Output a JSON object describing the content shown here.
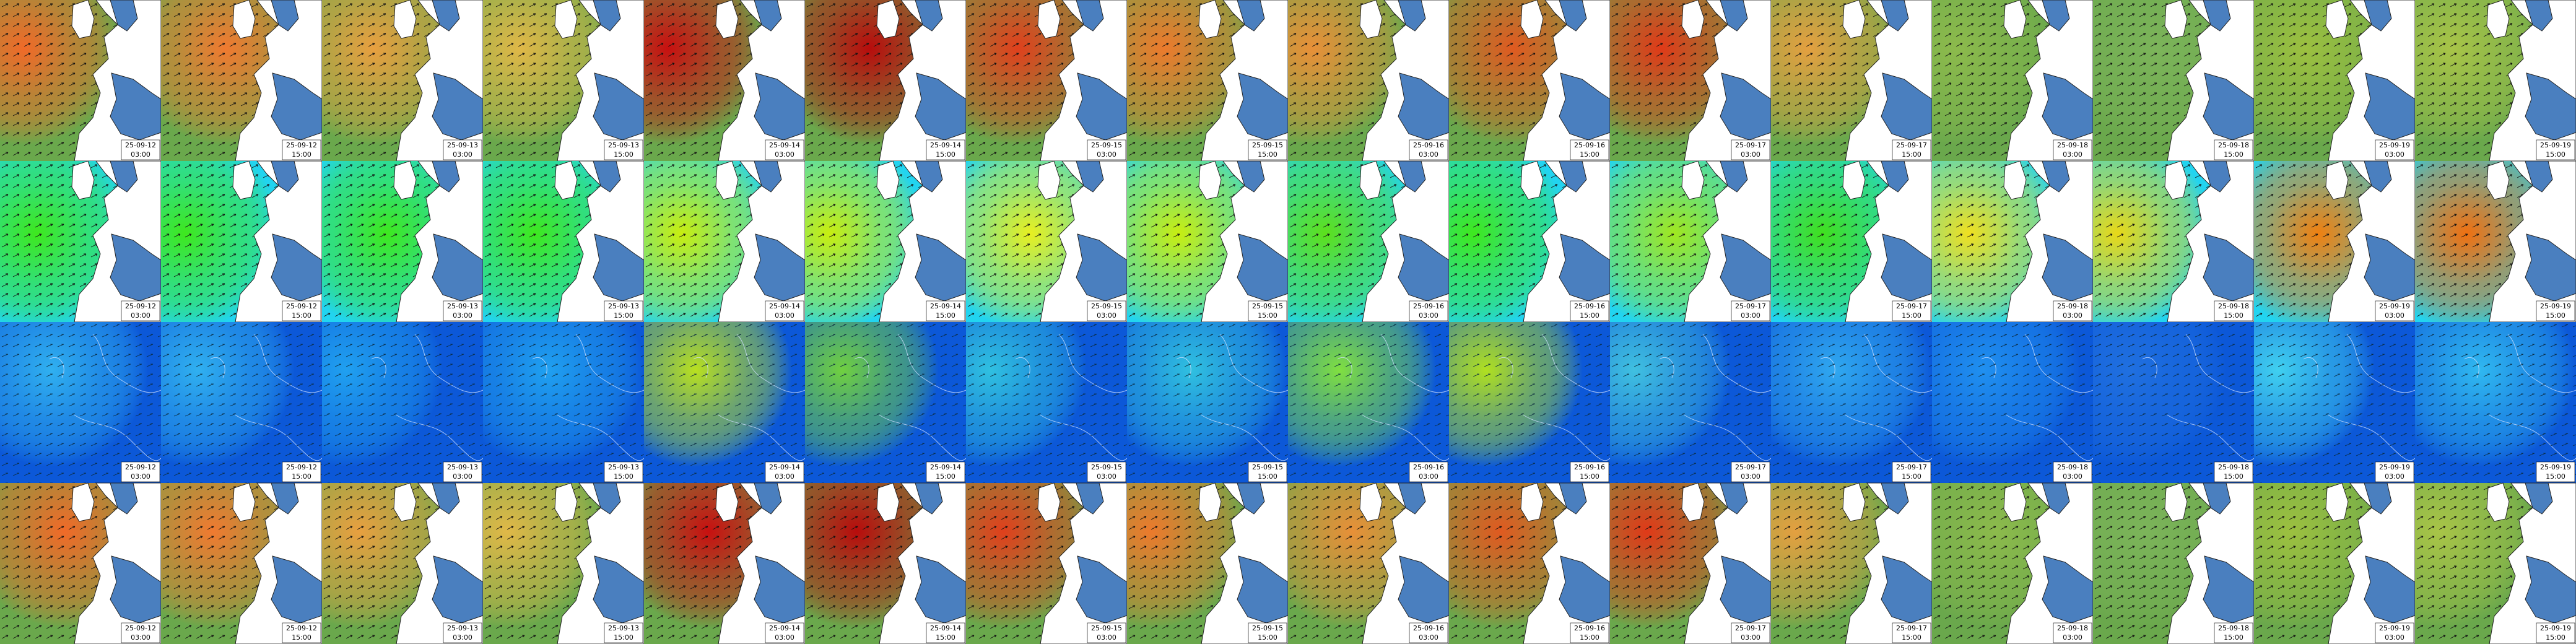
{
  "frames": [
    {
      "date": "25-09-12",
      "time": "03:00"
    },
    {
      "date": "25-09-12",
      "time": "15:00"
    },
    {
      "date": "25-09-13",
      "time": "03:00"
    },
    {
      "date": "25-09-13",
      "time": "15:00"
    },
    {
      "date": "25-09-14",
      "time": "03:00"
    },
    {
      "date": "25-09-14",
      "time": "15:00"
    },
    {
      "date": "25-09-15",
      "time": "03:00"
    },
    {
      "date": "25-09-15",
      "time": "15:00"
    },
    {
      "date": "25-09-16",
      "time": "03:00"
    },
    {
      "date": "25-09-16",
      "time": "15:00"
    },
    {
      "date": "25-09-17",
      "time": "03:00"
    },
    {
      "date": "25-09-17",
      "time": "15:00"
    },
    {
      "date": "25-09-18",
      "time": "03:00"
    },
    {
      "date": "25-09-18",
      "time": "15:00"
    },
    {
      "date": "25-09-19",
      "time": "03:00"
    },
    {
      "date": "25-09-19",
      "time": "15:00"
    }
  ]
}
